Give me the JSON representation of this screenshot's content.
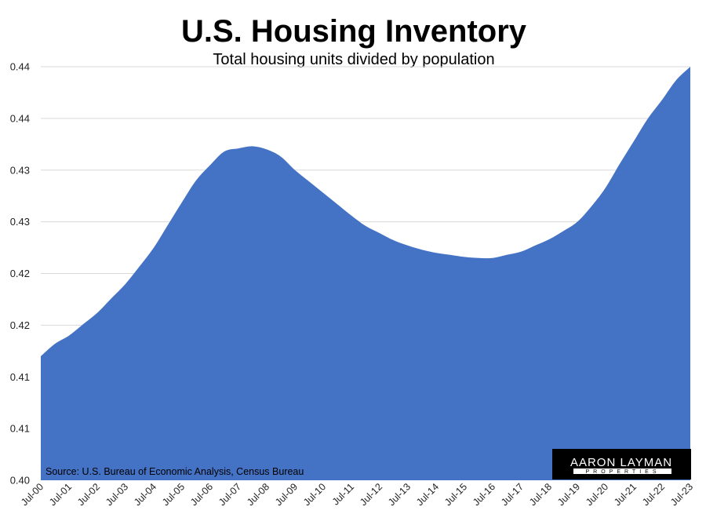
{
  "chart_data": {
    "type": "area",
    "title": "U.S. Housing Inventory",
    "subtitle": "Total housing units divided by population",
    "source": "Source: U.S. Bureau of Economic Analysis, Census Bureau",
    "ylim": [
      0.4,
      0.44
    ],
    "y_tick_values": [
      0.4,
      0.405,
      0.41,
      0.415,
      0.42,
      0.425,
      0.43,
      0.435,
      0.44
    ],
    "y_tick_labels": [
      "0.40",
      "0.41",
      "0.41",
      "0.42",
      "0.42",
      "0.43",
      "0.43",
      "0.44",
      "0.44"
    ],
    "x_tick_labels": [
      "Jul-00",
      "Jul-01",
      "Jul-02",
      "Jul-03",
      "Jul-04",
      "Jul-05",
      "Jul-06",
      "Jul-07",
      "Jul-08",
      "Jul-09",
      "Jul-10",
      "Jul-11",
      "Jul-12",
      "Jul-13",
      "Jul-14",
      "Jul-15",
      "Jul-16",
      "Jul-17",
      "Jul-18",
      "Jul-19",
      "Jul-20",
      "Jul-21",
      "Jul-22",
      "Jul-23"
    ],
    "grid": true,
    "fill_color": "#4472C4",
    "series": [
      {
        "x": [
          "Jul-00",
          "Jan-01",
          "Jul-01",
          "Jan-02",
          "Jul-02",
          "Jan-03",
          "Jul-03",
          "Jan-04",
          "Jul-04",
          "Jan-05",
          "Jul-05",
          "Jan-06",
          "Jul-06",
          "Jan-07",
          "Jul-07",
          "Jan-08",
          "Jul-08",
          "Jan-09",
          "Jul-09",
          "Jan-10",
          "Jul-10",
          "Jan-11",
          "Jul-11",
          "Jan-12",
          "Jul-12",
          "Jan-13",
          "Jul-13",
          "Jan-14",
          "Jul-14",
          "Jan-15",
          "Jul-15",
          "Jan-16",
          "Jul-16",
          "Jan-17",
          "Jul-17",
          "Jan-18",
          "Jul-18",
          "Jan-19",
          "Jul-19",
          "Jan-20",
          "Jul-20",
          "Jan-21",
          "Jul-21",
          "Jan-22",
          "Jul-22",
          "Jan-23",
          "Jul-23"
        ],
        "values": [
          0.412,
          0.4132,
          0.414,
          0.4151,
          0.4162,
          0.4176,
          0.419,
          0.4207,
          0.4225,
          0.4247,
          0.4269,
          0.429,
          0.4305,
          0.4318,
          0.4321,
          0.4323,
          0.432,
          0.4313,
          0.43,
          0.4289,
          0.4278,
          0.4267,
          0.4256,
          0.4246,
          0.4239,
          0.4232,
          0.4227,
          0.4223,
          0.422,
          0.4218,
          0.4216,
          0.4215,
          0.4215,
          0.4218,
          0.4221,
          0.4227,
          0.4233,
          0.4241,
          0.425,
          0.4265,
          0.4283,
          0.4306,
          0.4328,
          0.435,
          0.4368,
          0.4387,
          0.44
        ]
      }
    ]
  },
  "logo": {
    "name": "AARON LAYMAN",
    "tagline": "PROPERTIES"
  }
}
